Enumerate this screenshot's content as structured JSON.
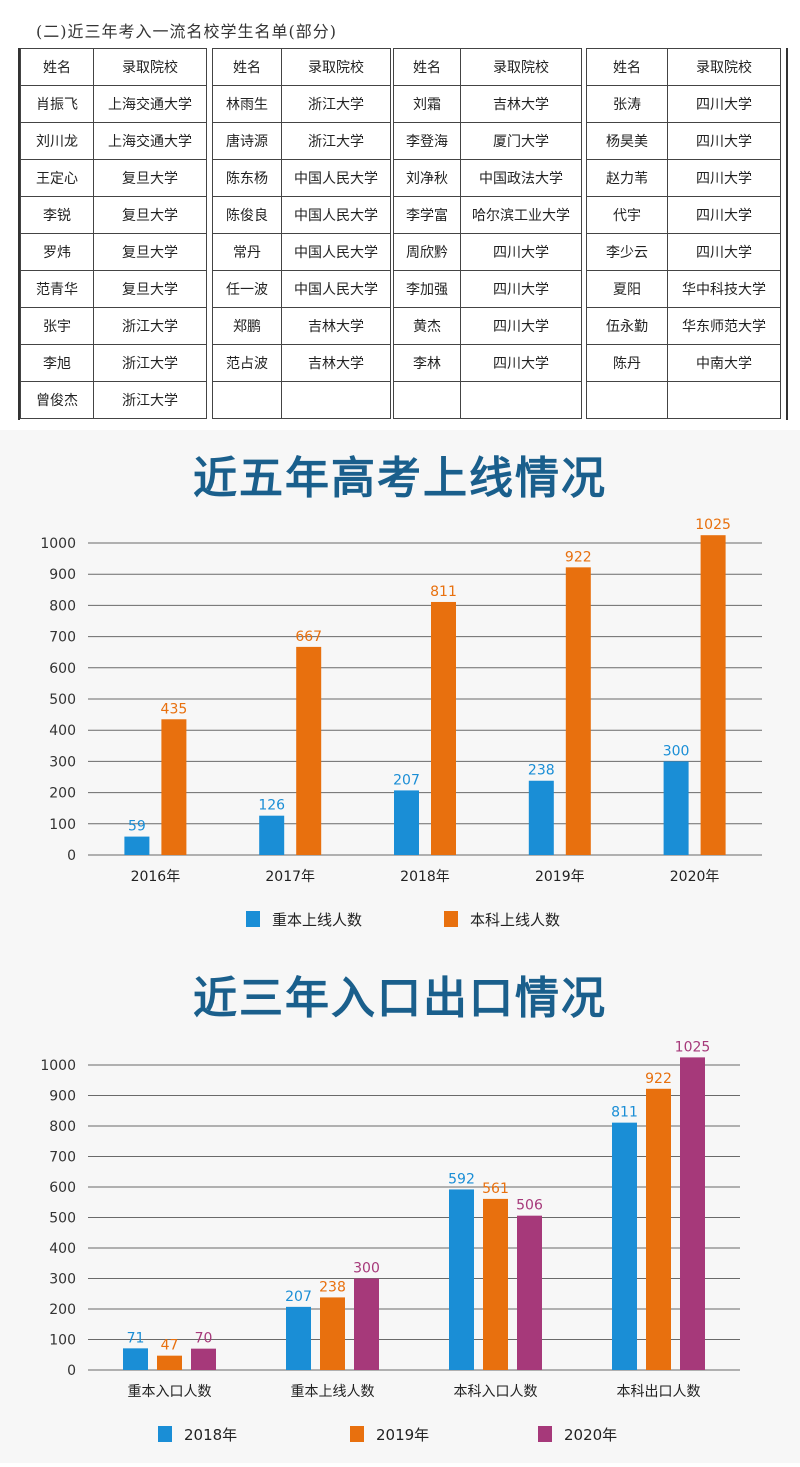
{
  "table": {
    "title": "(二)近三年考入一流名校学生名单(部分)",
    "header_name": "姓名",
    "header_school": "录取院校",
    "columns": [
      [
        [
          "肖振飞",
          "上海交通大学"
        ],
        [
          "刘川龙",
          "上海交通大学"
        ],
        [
          "王定心",
          "复旦大学"
        ],
        [
          "李锐",
          "复旦大学"
        ],
        [
          "罗炜",
          "复旦大学"
        ],
        [
          "范青华",
          "复旦大学"
        ],
        [
          "张宇",
          "浙江大学"
        ],
        [
          "李旭",
          "浙江大学"
        ],
        [
          "曾俊杰",
          "浙江大学"
        ]
      ],
      [
        [
          "林雨生",
          "浙江大学"
        ],
        [
          "唐诗源",
          "浙江大学"
        ],
        [
          "陈东杨",
          "中国人民大学"
        ],
        [
          "陈俊良",
          "中国人民大学"
        ],
        [
          "常丹",
          "中国人民大学"
        ],
        [
          "任一波",
          "中国人民大学"
        ],
        [
          "郑鹏",
          "吉林大学"
        ],
        [
          "范占波",
          "吉林大学"
        ],
        [
          "",
          ""
        ]
      ],
      [
        [
          "刘霜",
          "吉林大学"
        ],
        [
          "李登海",
          "厦门大学"
        ],
        [
          "刘净秋",
          "中国政法大学"
        ],
        [
          "李学富",
          "哈尔滨工业大学"
        ],
        [
          "周欣黔",
          "四川大学"
        ],
        [
          "李加强",
          "四川大学"
        ],
        [
          "黄杰",
          "四川大学"
        ],
        [
          "李林",
          "四川大学"
        ],
        [
          "",
          ""
        ]
      ],
      [
        [
          "张涛",
          "四川大学"
        ],
        [
          "杨昊美",
          "四川大学"
        ],
        [
          "赵力苇",
          "四川大学"
        ],
        [
          "代宇",
          "四川大学"
        ],
        [
          "李少云",
          "四川大学"
        ],
        [
          "夏阳",
          "华中科技大学"
        ],
        [
          "伍永勤",
          "华东师范大学"
        ],
        [
          "陈丹",
          "中南大学"
        ],
        [
          "",
          ""
        ]
      ]
    ]
  },
  "chart_data": [
    {
      "type": "bar",
      "title": "近五年高考上线情况",
      "categories": [
        "2016年",
        "2017年",
        "2018年",
        "2019年",
        "2020年"
      ],
      "series": [
        {
          "name": "重本上线人数",
          "values": [
            59,
            126,
            207,
            238,
            300
          ]
        },
        {
          "name": "本科上线人数",
          "values": [
            435,
            667,
            811,
            922,
            1025
          ]
        }
      ],
      "ylim": [
        0,
        1000
      ],
      "yticks": [
        0,
        100,
        200,
        300,
        400,
        500,
        600,
        700,
        800,
        900,
        1000
      ],
      "grid": true,
      "legend": "bottom",
      "colors": [
        "#1a8ed6",
        "#e8700e"
      ]
    },
    {
      "type": "bar",
      "title": "近三年入口出口情况",
      "categories": [
        "重本入口人数",
        "重本上线人数",
        "本科入口人数",
        "本科出口人数"
      ],
      "series": [
        {
          "name": "2018年",
          "values": [
            71,
            207,
            592,
            811
          ]
        },
        {
          "name": "2019年",
          "values": [
            47,
            238,
            561,
            922
          ]
        },
        {
          "name": "2020年",
          "values": [
            70,
            300,
            506,
            1025
          ]
        }
      ],
      "ylim": [
        0,
        1000
      ],
      "yticks": [
        0,
        100,
        200,
        300,
        400,
        500,
        600,
        700,
        800,
        900,
        1000
      ],
      "grid": true,
      "legend": "bottom",
      "colors": [
        "#1a8ed6",
        "#e8700e",
        "#a6397a"
      ]
    }
  ]
}
